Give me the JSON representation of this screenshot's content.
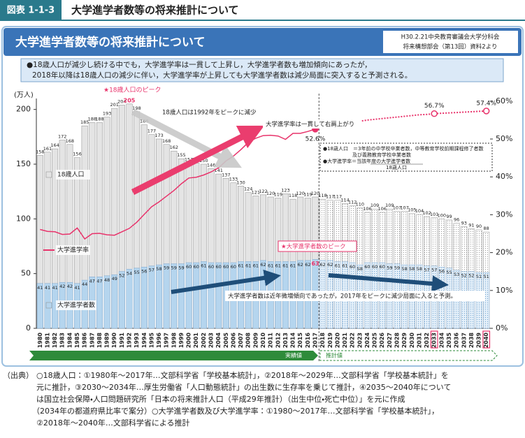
{
  "header": {
    "badge": "図表 1-1-3",
    "title": "大学進学者数等の将来推計について"
  },
  "panel_title": "大学進学者数等の将来推計について",
  "source_note": [
    "H30.2.21中央教育審議会大学分科会",
    "将来構想部会（第13回）資料2より"
  ],
  "summary": [
    "●18歳人口が減少し続ける中でも，大学進学率は一貫して上昇し，大学進学者数も増加傾向にあったが，",
    "2018年以降は18歳人口の減少に伴い，大学進学率が上昇しても大学進学者数は減少局面に突入すると予測される。"
  ],
  "chart_data": {
    "type": "bar",
    "bar_mode": "overlap",
    "y_label": "(万人)",
    "categories": [
      "1980",
      "1981",
      "1982",
      "1983",
      "1984",
      "1985",
      "1986",
      "1987",
      "1988",
      "1989",
      "1990",
      "1991",
      "1992",
      "1993",
      "1994",
      "1995",
      "1996",
      "1997",
      "1998",
      "1999",
      "2000",
      "2001",
      "2002",
      "2003",
      "2004",
      "2005",
      "2006",
      "2007",
      "2008",
      "2009",
      "2010",
      "2011",
      "2012",
      "2013",
      "2014",
      "2015",
      "2016",
      "2017",
      "2018",
      "2019",
      "2020",
      "2021",
      "2022",
      "2023",
      "2024",
      "2025",
      "2026",
      "2027",
      "2028",
      "2029",
      "2030",
      "2031",
      "2032",
      "2033",
      "2034",
      "2035",
      "2036",
      "2037",
      "2038",
      "2039",
      "2040"
    ],
    "projection_start": "2018",
    "highlighted": [
      "2033",
      "2040"
    ],
    "ylim": [
      0,
      210
    ],
    "yticks": [
      0,
      50,
      100,
      150,
      200
    ],
    "y2lim": [
      0,
      60.7
    ],
    "y2ticks": [
      {
        "value": 0,
        "label": "0%"
      },
      {
        "value": 10,
        "label": "10%"
      },
      {
        "value": 20,
        "label": "20%"
      },
      {
        "value": 30,
        "label": "30%"
      },
      {
        "value": 40,
        "label": "40%"
      },
      {
        "value": 50,
        "label": "50%"
      },
      {
        "value": 60,
        "label": "60%"
      }
    ],
    "grid": false,
    "series": [
      {
        "name": "18歳人口",
        "type": "bar",
        "color": "#e4e4e4",
        "values": [
          158,
          161,
          164,
          172,
          168,
          156,
          185,
          188,
          188,
          193,
          201,
          204,
          205,
          198,
          186,
          177,
          173,
          168,
          162,
          155,
          151,
          151,
          150,
          146,
          141,
          137,
          133,
          130,
          124,
          121,
          122,
          120,
          119,
          123,
          118,
          120,
          119,
          120,
          118,
          117,
          117,
          114,
          112,
          110,
          106,
          109,
          106,
          109,
          107,
          107,
          105,
          104,
          102,
          101,
          100,
          99,
          96,
          93,
          91,
          90,
          88
        ]
      },
      {
        "name": "大学進学者数",
        "type": "bar",
        "color": "#b5d5ee",
        "values": [
          41,
          41,
          41,
          42,
          42,
          41,
          44,
          47,
          47,
          48,
          49,
          52,
          54,
          55,
          56,
          57,
          58,
          59,
          59,
          59,
          60,
          60,
          61,
          60,
          60,
          60,
          60,
          61,
          61,
          61,
          62,
          61,
          61,
          61,
          61,
          62,
          62,
          63,
          62,
          62,
          61,
          61,
          60,
          58,
          60,
          60,
          60,
          59,
          59,
          58,
          58,
          58,
          57,
          57,
          56,
          55,
          53,
          52,
          52,
          51,
          51
        ]
      },
      {
        "name": "大学進学率",
        "type": "line",
        "axis": "y2",
        "color": "#e8336b",
        "values": [
          26.1,
          25.6,
          25.5,
          24.8,
          24.9,
          26.5,
          23.6,
          25.0,
          25.1,
          24.7,
          24.6,
          25.5,
          26.4,
          28.0,
          30.1,
          32.1,
          33.4,
          34.9,
          36.4,
          38.2,
          39.7,
          39.9,
          40.5,
          41.3,
          42.4,
          44.2,
          45.5,
          47.2,
          49.1,
          50.2,
          50.9,
          51.0,
          50.8,
          49.9,
          51.5,
          51.5,
          52.0,
          52.6,
          53.1,
          53.5,
          53.8,
          54.3,
          54.7,
          54.7,
          55.0,
          55.2,
          55.4,
          55.6,
          55.8,
          56.0,
          56.2,
          56.4,
          56.5,
          56.7,
          56.8,
          56.9,
          57.0,
          57.1,
          57.2,
          57.3,
          57.4
        ],
        "value_labels": [
          null,
          null,
          null,
          null,
          null,
          null,
          null,
          null,
          null,
          null,
          null,
          null,
          null,
          null,
          null,
          null,
          null,
          null,
          null,
          null,
          null,
          null,
          null,
          null,
          null,
          null,
          null,
          null,
          null,
          null,
          null,
          null,
          null,
          null,
          null,
          null,
          null,
          "52.6%",
          null,
          null,
          null,
          null,
          null,
          null,
          null,
          null,
          null,
          null,
          null,
          null,
          null,
          null,
          null,
          "56.7%",
          null,
          null,
          null,
          null,
          null,
          null,
          "57.4%"
        ]
      }
    ],
    "annotations": [
      "★18歳人口のピーク",
      "18歳人口は1992年をピークに減少",
      "大学進学率は一貫して右肩上がり",
      "★大学進学者数のピーク",
      "大学進学者数は近年微増傾向であったが，2017年をピークに減少局面に入ると予測。"
    ],
    "periods": [
      "実績値",
      "推計値"
    ],
    "definitions": [
      "●18歳人口　＝3年前の中学校卒業者数，中等教育学校前期課程修了者数",
      "及び義務教育学校卒業者数",
      "●大学進学率＝当該年度の大学進学者数",
      "18歳人口"
    ]
  },
  "footnote": {
    "label": "（出典）",
    "lines": [
      "○18歳人口：①1980年～2017年…文部科学省「学校基本統計」，②2018年～2029年…文部科学省「学校基本統計」を",
      "元に推計，③2030～2034年…厚生労働省「人口動態統計」の出生数に生存率を乗じて推計，④2035～2040年について",
      "は国立社会保障・人口問題研究所「日本の将来推計人口（平成29年推計）（出生中位・死亡中位）」を元に作成",
      "（2034年の都道府県比率で案分）○大学進学者数及び大学進学率：①1980～2017年…文部科学省「学校基本統計」，",
      "②2018年～2040年…文部科学省による推計"
    ]
  }
}
